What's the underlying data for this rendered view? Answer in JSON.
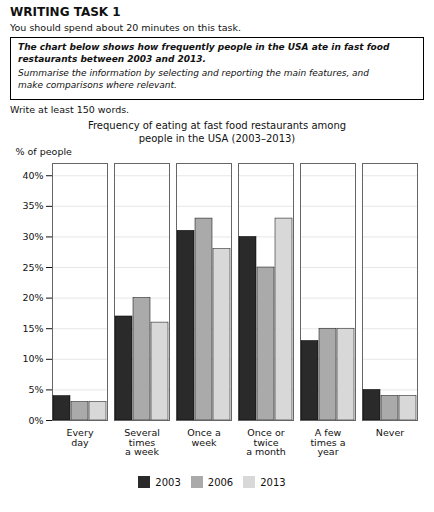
{
  "chart_data": {
    "type": "bar",
    "title": "Frequency of eating at fast food restaurants among\npeople in the USA (2003–2013)",
    "annotations": [
      "WRITING TASK 1",
      "You should spend about 20 minutes on this task.",
      "The chart below shows how frequently people in the USA ate in fast food\nrestaurants between 2003 and 2013.",
      "Summarise the information by selecting and reporting the main features, and\nmake comparisons where relevant.",
      "Write at least 150 words."
    ],
    "categories": [
      "Every\nday",
      "Several\ntimes\na week",
      "Once a\nweek",
      "Once or\ntwice\na month",
      "A few\ntimes a\nyear",
      "Never"
    ],
    "series": [
      {
        "name": "2003",
        "color": "#2a2a2a",
        "values": [
          4,
          17,
          31,
          30,
          13,
          5
        ]
      },
      {
        "name": "2006",
        "color": "#aaaaaa",
        "values": [
          3,
          20,
          33,
          25,
          15,
          4
        ]
      },
      {
        "name": "2013",
        "color": "#d8d8d8",
        "values": [
          3,
          16,
          28,
          33,
          15,
          4
        ]
      }
    ],
    "ylabel": "% of people",
    "ylim": [
      0,
      42
    ],
    "yticks": [
      {
        "value": 0,
        "label": "0%"
      },
      {
        "value": 5,
        "label": "5%"
      },
      {
        "value": 10,
        "label": "10%"
      },
      {
        "value": 15,
        "label": "15%"
      },
      {
        "value": 20,
        "label": "20%"
      },
      {
        "value": 25,
        "label": "25%"
      },
      {
        "value": 30,
        "label": "30%"
      },
      {
        "value": 35,
        "label": "35%"
      },
      {
        "value": 40,
        "label": "40%"
      }
    ],
    "grid": true,
    "legend": "bottom"
  }
}
